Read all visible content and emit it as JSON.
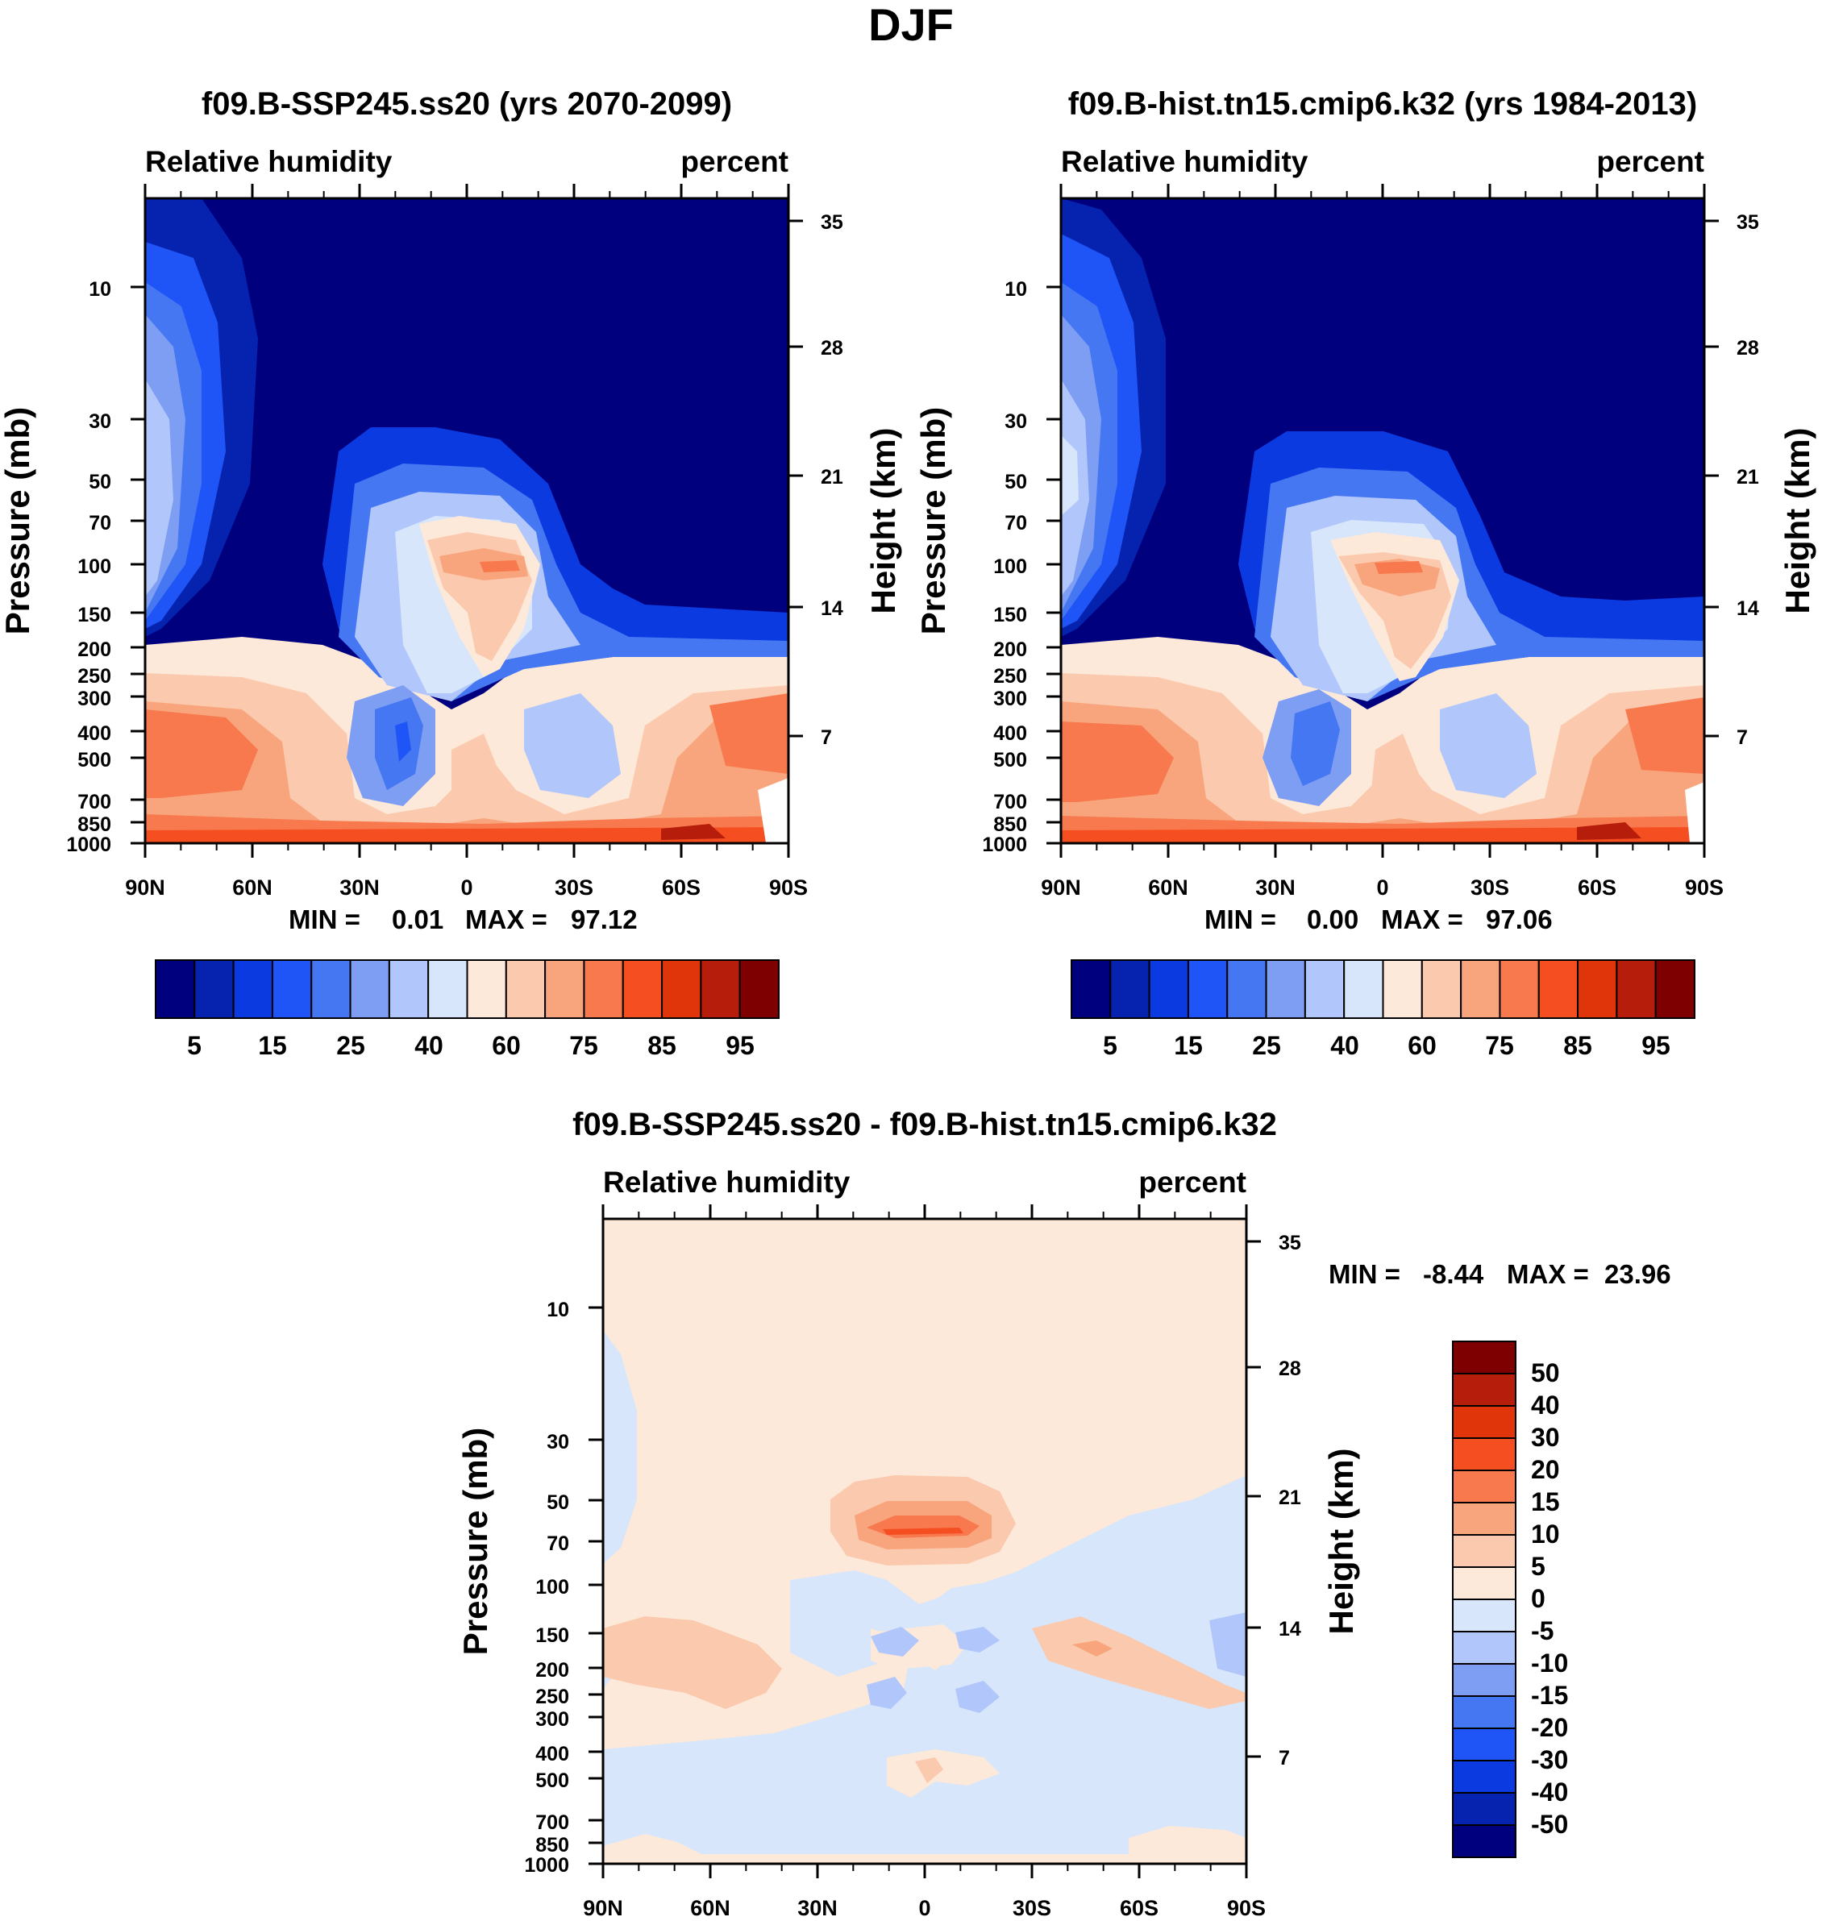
{
  "figure": {
    "title": "DJF"
  },
  "palette": {
    "sequential": [
      "#00007f",
      "#0623b0",
      "#0b3ae0",
      "#1f55f7",
      "#4677f2",
      "#7d9ef2",
      "#b1c7fb",
      "#d7e6fb",
      "#fde9d9",
      "#fbc9ad",
      "#f8a57d",
      "#f7794d",
      "#f54e21",
      "#e0340b",
      "#b61d0b",
      "#7f0000"
    ],
    "diverging": [
      "#00007f",
      "#0623b0",
      "#0b3ae0",
      "#1f55f7",
      "#4677f2",
      "#7d9ef2",
      "#b1c7fb",
      "#d7e6fb",
      "#fde9d9",
      "#fbc9ad",
      "#f8a57d",
      "#f7794d",
      "#f54e21",
      "#e0340b",
      "#b61d0b",
      "#7f0000"
    ]
  },
  "chart_data": [
    {
      "type": "heatmap",
      "title": "f09.B-SSP245.ss20 (yrs 2070-2099)",
      "left_label": "Relative humidity",
      "right_label": "percent",
      "ylabel": "Pressure (mb)",
      "ylabel_right": "Height (km)",
      "x_ticks": [
        "90N",
        "60N",
        "30N",
        "0",
        "30S",
        "60S",
        "90S"
      ],
      "y_ticks": [
        10,
        30,
        50,
        70,
        100,
        150,
        200,
        250,
        300,
        400,
        500,
        700,
        850,
        1000
      ],
      "y_right_ticks": [
        35,
        28,
        21,
        14,
        7
      ],
      "stats": {
        "min_label": "MIN =",
        "min": "0.01",
        "max_label": "MAX =",
        "max": "97.12"
      },
      "colorbar_labels": [
        "5",
        "15",
        "25",
        "40",
        "60",
        "75",
        "85",
        "95"
      ]
    },
    {
      "type": "heatmap",
      "title": "f09.B-hist.tn15.cmip6.k32 (yrs 1984-2013)",
      "left_label": "Relative humidity",
      "right_label": "percent",
      "ylabel": "Pressure (mb)",
      "ylabel_right": "Height (km)",
      "x_ticks": [
        "90N",
        "60N",
        "30N",
        "0",
        "30S",
        "60S",
        "90S"
      ],
      "y_ticks": [
        10,
        30,
        50,
        70,
        100,
        150,
        200,
        250,
        300,
        400,
        500,
        700,
        850,
        1000
      ],
      "y_right_ticks": [
        35,
        28,
        21,
        14,
        7
      ],
      "stats": {
        "min_label": "MIN =",
        "min": "0.00",
        "max_label": "MAX =",
        "max": "97.06"
      },
      "colorbar_labels": [
        "5",
        "15",
        "25",
        "40",
        "60",
        "75",
        "85",
        "95"
      ]
    },
    {
      "type": "heatmap",
      "title": "f09.B-SSP245.ss20 - f09.B-hist.tn15.cmip6.k32",
      "left_label": "Relative humidity",
      "right_label": "percent",
      "ylabel": "Pressure (mb)",
      "ylabel_right": "Height (km)",
      "x_ticks": [
        "90N",
        "60N",
        "30N",
        "0",
        "30S",
        "60S",
        "90S"
      ],
      "y_ticks": [
        10,
        30,
        50,
        70,
        100,
        150,
        200,
        250,
        300,
        400,
        500,
        700,
        850,
        1000
      ],
      "y_right_ticks": [
        35,
        28,
        21,
        14,
        7
      ],
      "stats": {
        "min_label": "MIN =",
        "min": "-8.44",
        "max_label": "MAX =",
        "max": "23.96"
      },
      "colorbar_labels": [
        "50",
        "40",
        "30",
        "20",
        "15",
        "10",
        "5",
        "0",
        "-5",
        "-10",
        "-15",
        "-20",
        "-30",
        "-40",
        "-50"
      ]
    }
  ]
}
